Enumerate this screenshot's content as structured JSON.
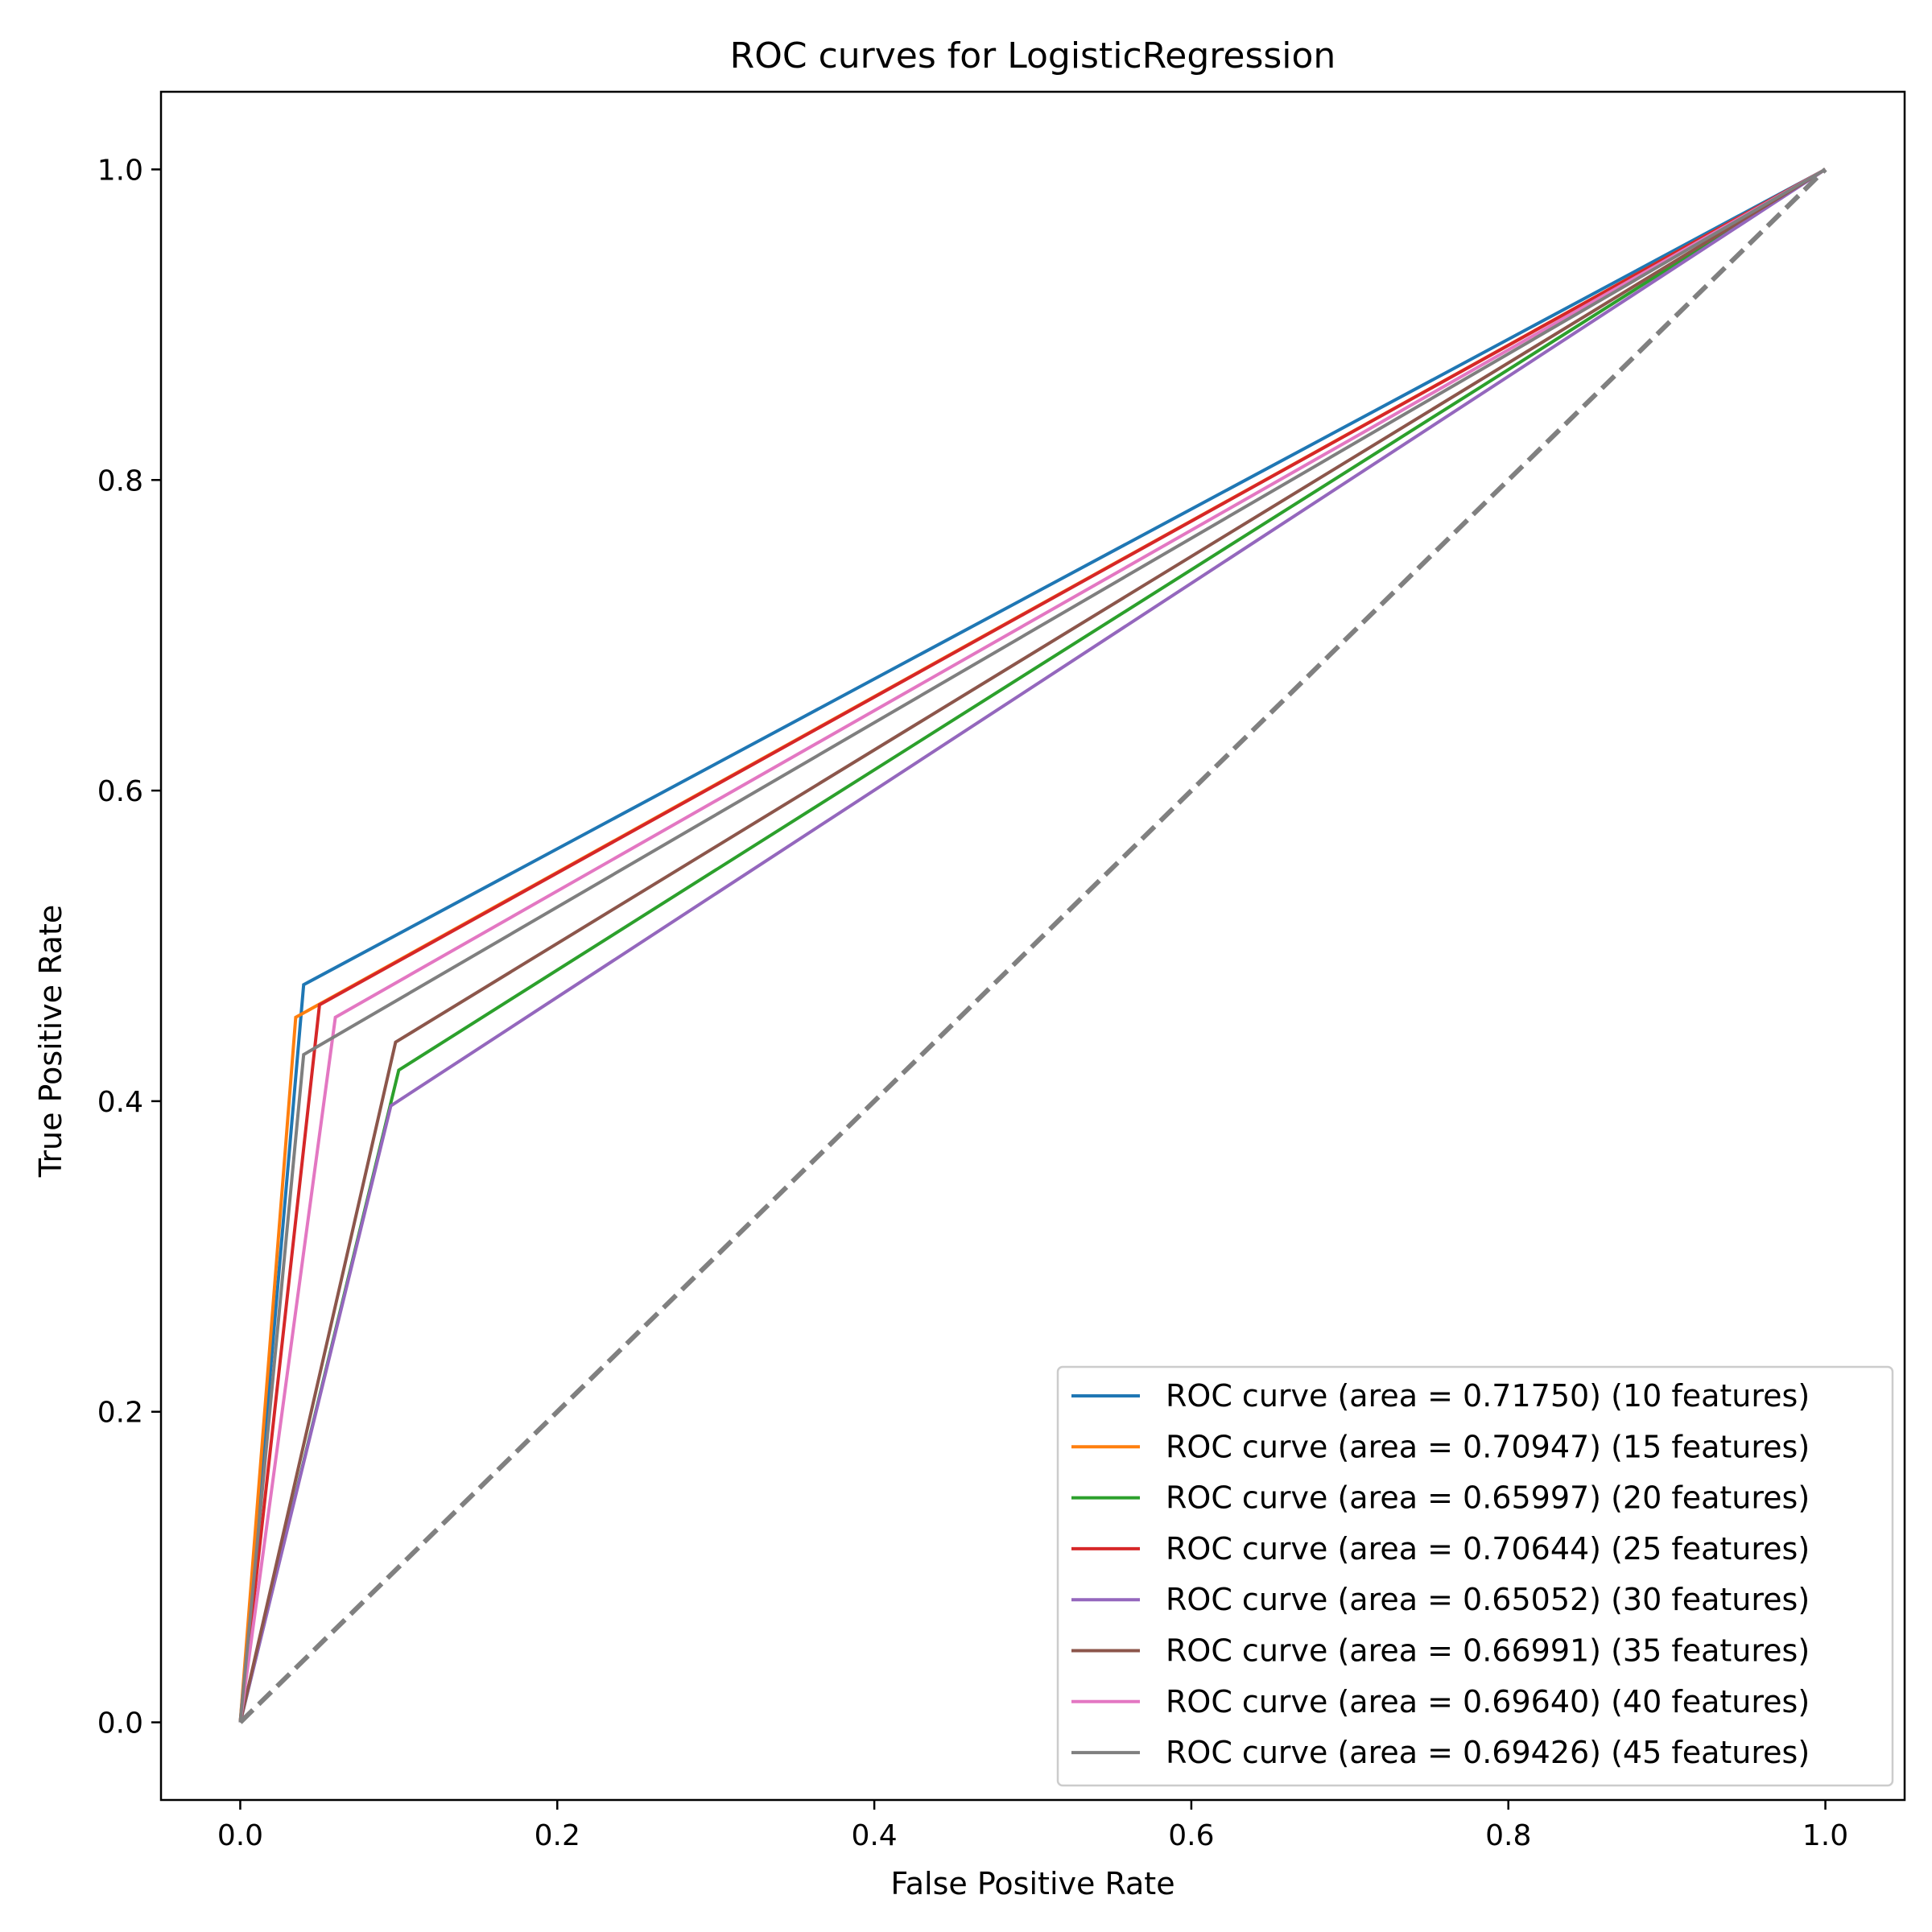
{
  "chart_data": {
    "type": "line",
    "title": "ROC curves for LogisticRegression",
    "xlabel": "False Positive Rate",
    "ylabel": "True Positive Rate",
    "xlim": [
      -0.05,
      1.05
    ],
    "ylim": [
      -0.05,
      1.05
    ],
    "xticks": [
      "0.0",
      "0.2",
      "0.4",
      "0.6",
      "0.8",
      "1.0"
    ],
    "yticks": [
      "0.0",
      "0.2",
      "0.4",
      "0.6",
      "0.8",
      "1.0"
    ],
    "grid": false,
    "legend_position": "lower right",
    "series": [
      {
        "name": "ROC curve (area = 0.71750) (10 features)",
        "color": "#1f77b4",
        "x": [
          0,
          0.04,
          1
        ],
        "y": [
          0,
          0.475,
          1
        ]
      },
      {
        "name": "ROC curve (area = 0.70947) (15 features)",
        "color": "#ff7f0e",
        "x": [
          0,
          0.035,
          1
        ],
        "y": [
          0,
          0.454,
          1
        ]
      },
      {
        "name": "ROC curve (area = 0.65997) (20 features)",
        "color": "#2ca02c",
        "x": [
          0,
          0.1,
          1
        ],
        "y": [
          0,
          0.42,
          1
        ]
      },
      {
        "name": "ROC curve (area = 0.70644) (25 features)",
        "color": "#d62728",
        "x": [
          0,
          0.05,
          1
        ],
        "y": [
          0,
          0.462,
          1
        ]
      },
      {
        "name": "ROC curve (area = 0.65052) (30 features)",
        "color": "#9467bd",
        "x": [
          0,
          0.095,
          1
        ],
        "y": [
          0,
          0.397,
          1
        ]
      },
      {
        "name": "ROC curve (area = 0.66991) (35 features)",
        "color": "#8c564b",
        "x": [
          0,
          0.098,
          1
        ],
        "y": [
          0,
          0.438,
          1
        ]
      },
      {
        "name": "ROC curve (area = 0.69640) (40 features)",
        "color": "#e377c2",
        "x": [
          0,
          0.06,
          1
        ],
        "y": [
          0,
          0.454,
          1
        ]
      },
      {
        "name": "ROC curve (area = 0.69426) (45 features)",
        "color": "#7f7f7f",
        "x": [
          0,
          0.04,
          1
        ],
        "y": [
          0,
          0.43,
          1
        ]
      }
    ],
    "reference_line": {
      "x": [
        0,
        1
      ],
      "y": [
        0,
        1
      ],
      "color": "#808080",
      "style": "dashed"
    }
  }
}
